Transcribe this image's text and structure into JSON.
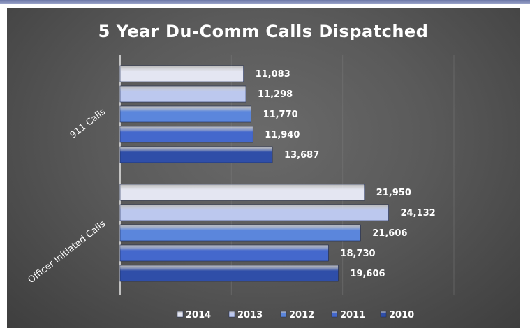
{
  "colors": {
    "2014": "#e4e6f2",
    "2013": "#bcc8ee",
    "2012": "#5b86dc",
    "2011": "#4468cc",
    "2010": "#2f4ea8"
  },
  "chart_data": {
    "type": "bar",
    "orientation": "horizontal",
    "title": "5 Year Du-Comm Calls Dispatched",
    "categories": [
      "911 Calls",
      "Officer Initiated Calls"
    ],
    "series": [
      {
        "name": "2014",
        "values": [
          11083,
          21950
        ],
        "labels": [
          "11,083",
          "21,950"
        ]
      },
      {
        "name": "2013",
        "values": [
          11298,
          24132
        ],
        "labels": [
          "11,298",
          "24,132"
        ]
      },
      {
        "name": "2012",
        "values": [
          11770,
          21606
        ],
        "labels": [
          "11,770",
          "21,606"
        ]
      },
      {
        "name": "2011",
        "values": [
          11940,
          18730
        ],
        "labels": [
          "11,940",
          "18,730"
        ]
      },
      {
        "name": "2010",
        "values": [
          13687,
          19606
        ],
        "labels": [
          "13,687",
          "19,606"
        ]
      }
    ],
    "xlim": [
      0,
      30000
    ],
    "grid": true,
    "legend": "bottom"
  }
}
